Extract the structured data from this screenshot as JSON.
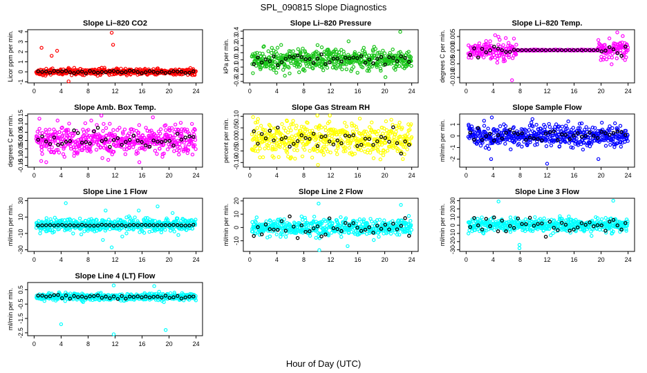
{
  "figure": {
    "title": "SPL_090815  Slope Diagnostics",
    "xlabel": "Hour of Day (UTC)"
  },
  "colors": {
    "red": "#ff0000",
    "green": "#19c419",
    "magenta": "#ff00ff",
    "yellow": "#ffff00",
    "blue": "#0000ff",
    "cyan": "#00ffff",
    "black": "#000000"
  },
  "chart_data": [
    {
      "type": "scatter",
      "title": "Slope Li–820 CO2",
      "ylabel": "Licor ppm per min.",
      "xlim": [
        0,
        24
      ],
      "xticks": [
        "0",
        "4",
        "8",
        "12",
        "16",
        "20",
        "24"
      ],
      "ylim": [
        -1.1,
        4.2
      ],
      "yticks": [
        "-1",
        "0",
        "1",
        "2",
        "3",
        "4"
      ],
      "color": "red",
      "noise": 0.15,
      "outliers": [
        [
          1.1,
          2.4
        ],
        [
          2.6,
          1.6
        ],
        [
          3.4,
          2.1
        ],
        [
          11.5,
          3.9
        ],
        [
          11.7,
          2.7
        ],
        [
          5.1,
          -0.95
        ]
      ],
      "black": "centered"
    },
    {
      "type": "scatter",
      "title": "Slope Li–820 Pressure",
      "ylabel": "kPa per min.",
      "xlim": [
        0,
        24
      ],
      "xticks": [
        "0",
        "4",
        "8",
        "12",
        "16",
        "20",
        "24"
      ],
      "ylim": [
        -0.32,
        0.42
      ],
      "yticks": [
        "-0.3",
        "-0.2",
        "-0.1",
        "0.0",
        "0.1",
        "0.2",
        "0.3",
        "0.4"
      ],
      "color": "green",
      "noise": 0.07,
      "outliers": [
        [
          22.3,
          0.39
        ],
        [
          20.1,
          -0.24
        ],
        [
          5.2,
          -0.22
        ]
      ],
      "black": "centered"
    },
    {
      "type": "scatter",
      "title": "Slope Li–820 Temp.",
      "ylabel": "degrees C per min.",
      "xlim": [
        0,
        24
      ],
      "xticks": [
        "0",
        "4",
        "8",
        "12",
        "16",
        "20",
        "24"
      ],
      "ylim": [
        -0.012,
        0.0075
      ],
      "yticks": [
        "-0.010",
        "-0.005",
        "0.000",
        "0.005"
      ],
      "color": "magenta",
      "noise": 0.0018,
      "outliers": [
        [
          22.4,
          0.0065
        ],
        [
          6.8,
          -0.011
        ],
        [
          4.3,
          0.0055
        ]
      ],
      "black": "centered"
    },
    {
      "type": "scatter",
      "title": "Slope Amb. Box Temp.",
      "ylabel": "degrees C per min.",
      "xlim": [
        0,
        24
      ],
      "xticks": [
        "0",
        "4",
        "8",
        "12",
        "16",
        "20",
        "24"
      ],
      "ylim": [
        -0.16,
        0.16
      ],
      "yticks": [
        "-0.15",
        "-0.10",
        "-0.05",
        "0.00",
        "0.05",
        "0.10",
        "0.15"
      ],
      "color": "magenta",
      "noise": 0.045,
      "outliers": [
        [
          10.3,
          0.1
        ],
        [
          17.6,
          0.14
        ],
        [
          15.6,
          -0.13
        ],
        [
          1.8,
          -0.13
        ]
      ],
      "black": "centered"
    },
    {
      "type": "scatter",
      "title": "Slope Gas Stream RH",
      "ylabel": "percent per min.",
      "xlim": [
        0,
        24
      ],
      "xticks": [
        "0",
        "4",
        "8",
        "12",
        "16",
        "20",
        "24"
      ],
      "ylim": [
        -0.12,
        0.11
      ],
      "yticks": [
        "-0.10",
        "-0.05",
        "0.00",
        "0.05",
        "0.10"
      ],
      "color": "yellow",
      "noise": 0.035,
      "outliers": [
        [
          16.3,
          0.09
        ],
        [
          10.1,
          -0.11
        ]
      ],
      "black": "centered"
    },
    {
      "type": "scatter",
      "title": "Slope Sample Flow",
      "ylabel": "ml/min per min.",
      "xlim": [
        0,
        24
      ],
      "xticks": [
        "0",
        "4",
        "8",
        "12",
        "16",
        "20",
        "24"
      ],
      "ylim": [
        -2.7,
        1.9
      ],
      "yticks": [
        "-2",
        "-1",
        "0",
        "1"
      ],
      "color": "blue",
      "noise": 0.45,
      "outliers": [
        [
          3.7,
          -2.0
        ],
        [
          12.0,
          -2.4
        ],
        [
          19.6,
          -2.0
        ],
        [
          3.8,
          1.6
        ]
      ],
      "black": "centered"
    },
    {
      "type": "scatter",
      "title": "Slope Line 1 Flow",
      "ylabel": "ml/min per min.",
      "xlim": [
        0,
        24
      ],
      "xticks": [
        "0",
        "4",
        "8",
        "12",
        "16",
        "20",
        "24"
      ],
      "ylim": [
        -32,
        33
      ],
      "yticks": [
        "-30",
        "-10",
        "10",
        "30"
      ],
      "color": "cyan",
      "noise": 4,
      "outliers": [
        [
          4.7,
          27
        ],
        [
          10.6,
          18
        ],
        [
          15.5,
          18
        ],
        [
          18.3,
          23
        ],
        [
          11.5,
          -27
        ],
        [
          10.2,
          -18
        ]
      ],
      "black": "flat"
    },
    {
      "type": "scatter",
      "title": "Slope Line 2 Flow",
      "ylabel": "ml/min per min.",
      "xlim": [
        0,
        24
      ],
      "xticks": [
        "0",
        "4",
        "8",
        "12",
        "16",
        "20",
        "24"
      ],
      "ylim": [
        -18,
        22
      ],
      "yticks": [
        "-10",
        "0",
        "10",
        "20"
      ],
      "color": "cyan",
      "noise": 3,
      "outliers": [
        [
          10.2,
          18
        ],
        [
          22.4,
          17
        ],
        [
          10.3,
          -17
        ],
        [
          14.5,
          -14
        ]
      ],
      "black": "spread"
    },
    {
      "type": "scatter",
      "title": "Slope Line 3 Flow",
      "ylabel": "ml/min per min.",
      "xlim": [
        0,
        24
      ],
      "xticks": [
        "0",
        "4",
        "8",
        "12",
        "16",
        "20",
        "24"
      ],
      "ylim": [
        -32,
        33
      ],
      "yticks": [
        "-30",
        "-20",
        "-10",
        "0",
        "10",
        "20",
        "30"
      ],
      "color": "cyan",
      "noise": 4,
      "outliers": [
        [
          4.8,
          29
        ],
        [
          21.8,
          30
        ],
        [
          7.9,
          -28
        ],
        [
          7.9,
          -24
        ]
      ],
      "black": "spread"
    },
    {
      "type": "scatter",
      "title": "Slope Line 4 (LT) Flow",
      "ylabel": "ml/min per min.",
      "xlim": [
        0,
        24
      ],
      "xticks": [
        "0",
        "4",
        "8",
        "12",
        "16",
        "20",
        "24"
      ],
      "ylim": [
        -2.7,
        1.0
      ],
      "yticks": [
        "-2.5",
        "-1.5",
        "-0.5",
        "0.5"
      ],
      "color": "cyan",
      "noise": 0.12,
      "outliers": [
        [
          4.0,
          -1.9
        ],
        [
          11.8,
          -2.6
        ],
        [
          19.5,
          -2.3
        ],
        [
          11.8,
          0.8
        ],
        [
          17.8,
          0.75
        ]
      ],
      "black": "centered"
    }
  ]
}
